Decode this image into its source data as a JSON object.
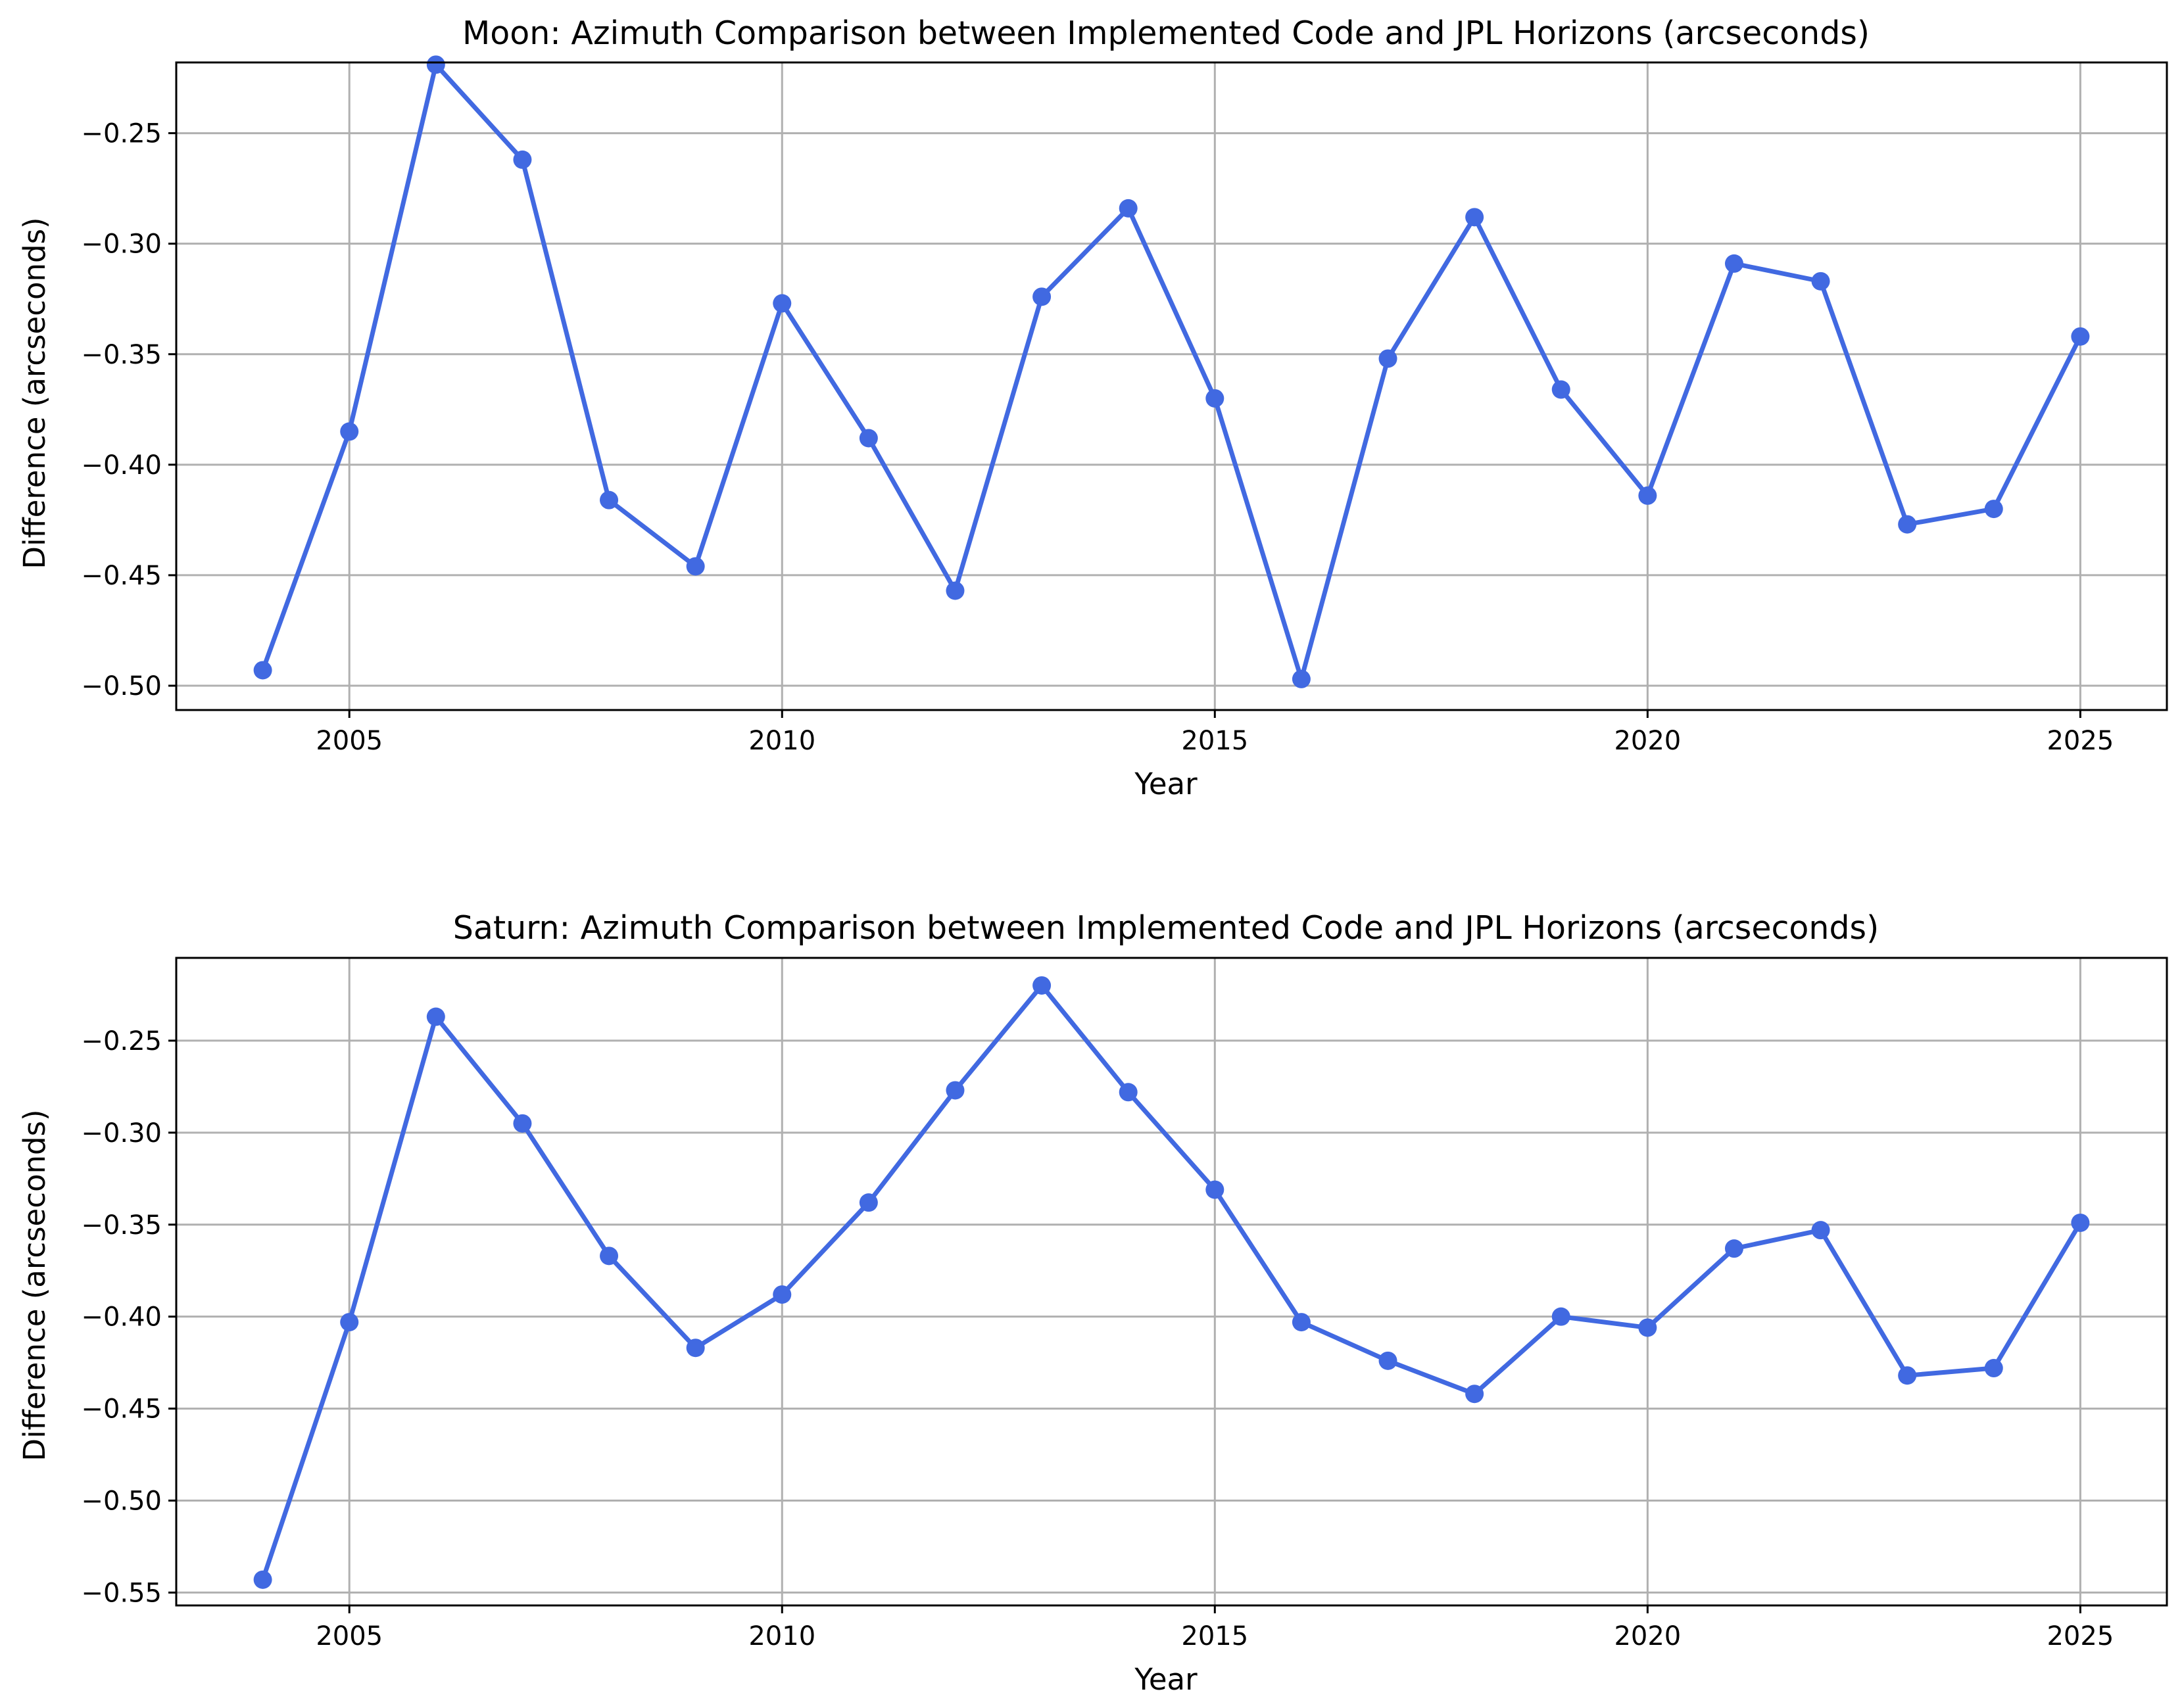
{
  "colors": {
    "series": "#4169e1",
    "grid": "#b0b0b0",
    "background": "#ffffff"
  },
  "chart_data": [
    {
      "type": "line",
      "title": "Moon: Azimuth Comparison between Implemented Code and JPL Horizons (arcseconds)",
      "xlabel": "Year",
      "ylabel": "Difference (arcseconds)",
      "xlim": [
        2003.0,
        2026.0
      ],
      "ylim": [
        -0.511,
        -0.218
      ],
      "xticks": [
        2005,
        2010,
        2015,
        2020,
        2025
      ],
      "yticks": [
        -0.5,
        -0.45,
        -0.4,
        -0.35,
        -0.3,
        -0.25
      ],
      "ytick_labels": [
        "−0.50",
        "−0.45",
        "−0.40",
        "−0.35",
        "−0.30",
        "−0.25"
      ],
      "grid": true,
      "marker": "circle",
      "x": [
        2004,
        2005,
        2006,
        2007,
        2008,
        2009,
        2010,
        2011,
        2012,
        2013,
        2014,
        2015,
        2016,
        2017,
        2018,
        2019,
        2020,
        2021,
        2022,
        2023,
        2024,
        2025
      ],
      "series": [
        {
          "values": [
            -0.493,
            -0.385,
            -0.219,
            -0.262,
            -0.416,
            -0.446,
            -0.327,
            -0.388,
            -0.457,
            -0.324,
            -0.284,
            -0.37,
            -0.497,
            -0.352,
            -0.288,
            -0.366,
            -0.414,
            -0.309,
            -0.317,
            -0.427,
            -0.42,
            -0.342
          ],
          "color": "#4169e1"
        }
      ]
    },
    {
      "type": "line",
      "title": "Saturn: Azimuth Comparison between Implemented Code and JPL Horizons (arcseconds)",
      "xlabel": "Year",
      "ylabel": "Difference (arcseconds)",
      "xlim": [
        2003.0,
        2026.0
      ],
      "ylim": [
        -0.557,
        -0.205
      ],
      "xticks": [
        2005,
        2010,
        2015,
        2020,
        2025
      ],
      "yticks": [
        -0.55,
        -0.5,
        -0.45,
        -0.4,
        -0.35,
        -0.3,
        -0.25
      ],
      "ytick_labels": [
        "−0.55",
        "−0.50",
        "−0.45",
        "−0.40",
        "−0.35",
        "−0.30",
        "−0.25"
      ],
      "grid": true,
      "marker": "circle",
      "x": [
        2004,
        2005,
        2006,
        2007,
        2008,
        2009,
        2010,
        2011,
        2012,
        2013,
        2014,
        2015,
        2016,
        2017,
        2018,
        2019,
        2020,
        2021,
        2022,
        2023,
        2024,
        2025
      ],
      "series": [
        {
          "values": [
            -0.543,
            -0.403,
            -0.237,
            -0.295,
            -0.367,
            -0.417,
            -0.388,
            -0.338,
            -0.277,
            -0.22,
            -0.278,
            -0.331,
            -0.403,
            -0.424,
            -0.442,
            -0.4,
            -0.406,
            -0.363,
            -0.353,
            -0.432,
            -0.428,
            -0.349
          ],
          "color": "#4169e1"
        }
      ]
    }
  ]
}
